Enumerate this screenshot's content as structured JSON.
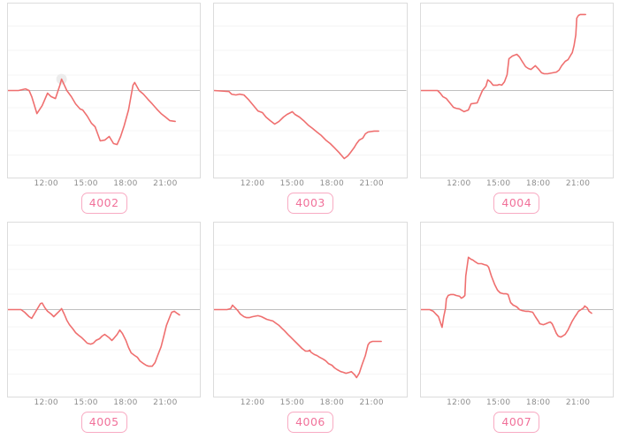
{
  "colors": {
    "line": "#ef6f6f",
    "zero_line": "#c0c0c0",
    "grid_line": "#f4f4f4",
    "plot_border": "#dcdcdc",
    "tick_text": "#8c8c8c",
    "badge_text": "#f1719a",
    "badge_border": "#f8abc3",
    "marker_halo": "#ececec"
  },
  "axis": {
    "xlim": [
      9.05,
      23.7
    ],
    "ylim": [
      -3.58,
      3.58
    ],
    "xticks": [
      {
        "hour": 12,
        "label": "12:00"
      },
      {
        "hour": 15,
        "label": "15:00"
      },
      {
        "hour": 18,
        "label": "18:00"
      },
      {
        "hour": 21,
        "label": "21:00"
      }
    ]
  },
  "chart_data": [
    {
      "type": "line",
      "code": "4002",
      "title": "",
      "xlabel": "",
      "ylabel": "",
      "x_unit": "time of day (hours)",
      "y_unit": "relative change (arbitrary units, no y-axis labels shown)",
      "baseline": 0,
      "grid": "horizontal-faint",
      "legend": "none",
      "marker": [
        13.14,
        0.47
      ],
      "points": [
        [
          9.05,
          0
        ],
        [
          9.85,
          0
        ],
        [
          10.39,
          0.07
        ],
        [
          10.66,
          0
        ],
        [
          10.86,
          -0.25
        ],
        [
          11.26,
          -0.95
        ],
        [
          11.66,
          -0.62
        ],
        [
          12.07,
          -0.11
        ],
        [
          12.34,
          -0.25
        ],
        [
          12.67,
          -0.33
        ],
        [
          13.01,
          0.22
        ],
        [
          13.14,
          0.47
        ],
        [
          13.54,
          0
        ],
        [
          13.88,
          -0.25
        ],
        [
          14.21,
          -0.55
        ],
        [
          14.55,
          -0.76
        ],
        [
          14.75,
          -0.8
        ],
        [
          15.09,
          -1.05
        ],
        [
          15.42,
          -1.35
        ],
        [
          15.69,
          -1.49
        ],
        [
          16.09,
          -2.07
        ],
        [
          16.43,
          -2.04
        ],
        [
          16.77,
          -1.89
        ],
        [
          17.1,
          -2.18
        ],
        [
          17.37,
          -2.22
        ],
        [
          17.64,
          -1.89
        ],
        [
          17.91,
          -1.45
        ],
        [
          18.24,
          -0.8
        ],
        [
          18.58,
          0.22
        ],
        [
          18.71,
          0.33
        ],
        [
          19.05,
          0
        ],
        [
          19.38,
          -0.15
        ],
        [
          19.72,
          -0.36
        ],
        [
          20.05,
          -0.55
        ],
        [
          20.39,
          -0.76
        ],
        [
          20.72,
          -0.95
        ],
        [
          21.06,
          -1.09
        ],
        [
          21.39,
          -1.24
        ],
        [
          21.8,
          -1.27
        ]
      ]
    },
    {
      "type": "line",
      "code": "4003",
      "title": "",
      "xlabel": "",
      "ylabel": "",
      "x_unit": "time of day (hours)",
      "y_unit": "relative change (arbitrary units, no y-axis labels shown)",
      "baseline": 0,
      "grid": "horizontal-faint",
      "legend": "none",
      "marker": null,
      "points": [
        [
          9.05,
          0
        ],
        [
          10.19,
          -0.04
        ],
        [
          10.39,
          -0.15
        ],
        [
          10.72,
          -0.18
        ],
        [
          10.99,
          -0.15
        ],
        [
          11.33,
          -0.18
        ],
        [
          11.66,
          -0.36
        ],
        [
          12.07,
          -0.62
        ],
        [
          12.4,
          -0.84
        ],
        [
          12.74,
          -0.91
        ],
        [
          13.01,
          -1.09
        ],
        [
          13.34,
          -1.24
        ],
        [
          13.68,
          -1.38
        ],
        [
          14.01,
          -1.27
        ],
        [
          14.35,
          -1.09
        ],
        [
          14.62,
          -0.98
        ],
        [
          14.89,
          -0.91
        ],
        [
          15.02,
          -0.87
        ],
        [
          15.22,
          -0.98
        ],
        [
          15.56,
          -1.09
        ],
        [
          15.89,
          -1.24
        ],
        [
          16.23,
          -1.42
        ],
        [
          16.56,
          -1.56
        ],
        [
          16.9,
          -1.71
        ],
        [
          17.23,
          -1.85
        ],
        [
          17.57,
          -2.04
        ],
        [
          17.91,
          -2.18
        ],
        [
          18.24,
          -2.36
        ],
        [
          18.58,
          -2.55
        ],
        [
          18.98,
          -2.8
        ],
        [
          19.25,
          -2.69
        ],
        [
          19.45,
          -2.55
        ],
        [
          19.72,
          -2.36
        ],
        [
          19.92,
          -2.18
        ],
        [
          20.12,
          -2.04
        ],
        [
          20.39,
          -1.96
        ],
        [
          20.59,
          -1.78
        ],
        [
          20.79,
          -1.71
        ],
        [
          20.99,
          -1.69
        ],
        [
          21.26,
          -1.67
        ],
        [
          21.6,
          -1.67
        ]
      ]
    },
    {
      "type": "line",
      "code": "4004",
      "title": "",
      "xlabel": "",
      "ylabel": "",
      "x_unit": "time of day (hours)",
      "y_unit": "relative change (arbitrary units, no y-axis labels shown)",
      "baseline": 0,
      "grid": "horizontal-faint",
      "legend": "none",
      "marker": null,
      "points": [
        [
          9.05,
          0
        ],
        [
          10.32,
          0
        ],
        [
          10.52,
          -0.11
        ],
        [
          10.72,
          -0.25
        ],
        [
          10.99,
          -0.33
        ],
        [
          11.26,
          -0.51
        ],
        [
          11.53,
          -0.69
        ],
        [
          11.73,
          -0.73
        ],
        [
          12.0,
          -0.76
        ],
        [
          12.34,
          -0.87
        ],
        [
          12.67,
          -0.8
        ],
        [
          12.87,
          -0.55
        ],
        [
          13.34,
          -0.51
        ],
        [
          13.54,
          -0.25
        ],
        [
          13.74,
          0
        ],
        [
          14.01,
          0.18
        ],
        [
          14.15,
          0.44
        ],
        [
          14.35,
          0.36
        ],
        [
          14.55,
          0.22
        ],
        [
          14.89,
          0.22
        ],
        [
          15.02,
          0.25
        ],
        [
          15.22,
          0.22
        ],
        [
          15.42,
          0.36
        ],
        [
          15.62,
          0.65
        ],
        [
          15.76,
          1.31
        ],
        [
          16.03,
          1.42
        ],
        [
          16.36,
          1.49
        ],
        [
          16.56,
          1.38
        ],
        [
          16.77,
          1.2
        ],
        [
          17.03,
          0.98
        ],
        [
          17.23,
          0.91
        ],
        [
          17.44,
          0.87
        ],
        [
          17.77,
          1.02
        ],
        [
          18.04,
          0.87
        ],
        [
          18.24,
          0.73
        ],
        [
          18.44,
          0.69
        ],
        [
          18.71,
          0.69
        ],
        [
          19.11,
          0.73
        ],
        [
          19.38,
          0.76
        ],
        [
          19.58,
          0.84
        ],
        [
          19.78,
          1.02
        ],
        [
          20.05,
          1.2
        ],
        [
          20.26,
          1.27
        ],
        [
          20.46,
          1.45
        ],
        [
          20.59,
          1.56
        ],
        [
          20.72,
          1.85
        ],
        [
          20.86,
          2.29
        ],
        [
          20.93,
          2.98
        ],
        [
          21.06,
          3.09
        ],
        [
          21.19,
          3.13
        ],
        [
          21.6,
          3.13
        ]
      ]
    },
    {
      "type": "line",
      "code": "4005",
      "title": "",
      "xlabel": "",
      "ylabel": "",
      "x_unit": "time of day (hours)",
      "y_unit": "relative change (arbitrary units, no y-axis labels shown)",
      "baseline": 0,
      "grid": "horizontal-faint",
      "legend": "none",
      "marker": null,
      "points": [
        [
          9.05,
          0
        ],
        [
          10.05,
          0
        ],
        [
          10.32,
          -0.11
        ],
        [
          10.66,
          -0.29
        ],
        [
          10.86,
          -0.36
        ],
        [
          11.06,
          -0.18
        ],
        [
          11.33,
          0.07
        ],
        [
          11.53,
          0.25
        ],
        [
          11.66,
          0.27
        ],
        [
          11.87,
          0.07
        ],
        [
          12.07,
          -0.07
        ],
        [
          12.34,
          -0.18
        ],
        [
          12.54,
          -0.29
        ],
        [
          12.74,
          -0.18
        ],
        [
          13.01,
          -0.04
        ],
        [
          13.14,
          0.04
        ],
        [
          13.34,
          -0.18
        ],
        [
          13.54,
          -0.44
        ],
        [
          13.74,
          -0.62
        ],
        [
          14.01,
          -0.8
        ],
        [
          14.21,
          -0.95
        ],
        [
          14.42,
          -1.05
        ],
        [
          14.68,
          -1.16
        ],
        [
          14.89,
          -1.27
        ],
        [
          15.09,
          -1.38
        ],
        [
          15.36,
          -1.42
        ],
        [
          15.56,
          -1.38
        ],
        [
          15.76,
          -1.27
        ],
        [
          16.03,
          -1.2
        ],
        [
          16.23,
          -1.09
        ],
        [
          16.43,
          -1.02
        ],
        [
          16.77,
          -1.16
        ],
        [
          16.97,
          -1.27
        ],
        [
          17.1,
          -1.2
        ],
        [
          17.37,
          -1.02
        ],
        [
          17.57,
          -0.84
        ],
        [
          17.77,
          -0.98
        ],
        [
          18.04,
          -1.27
        ],
        [
          18.24,
          -1.56
        ],
        [
          18.44,
          -1.78
        ],
        [
          18.71,
          -1.89
        ],
        [
          18.91,
          -1.96
        ],
        [
          19.11,
          -2.11
        ],
        [
          19.38,
          -2.22
        ],
        [
          19.58,
          -2.29
        ],
        [
          19.78,
          -2.33
        ],
        [
          20.05,
          -2.33
        ],
        [
          20.26,
          -2.18
        ],
        [
          20.46,
          -1.89
        ],
        [
          20.72,
          -1.53
        ],
        [
          20.93,
          -1.09
        ],
        [
          21.13,
          -0.65
        ],
        [
          21.39,
          -0.29
        ],
        [
          21.53,
          -0.11
        ],
        [
          21.73,
          -0.07
        ],
        [
          21.93,
          -0.15
        ],
        [
          22.13,
          -0.22
        ]
      ]
    },
    {
      "type": "line",
      "code": "4006",
      "title": "",
      "xlabel": "",
      "ylabel": "",
      "x_unit": "time of day (hours)",
      "y_unit": "relative change (arbitrary units, no y-axis labels shown)",
      "baseline": 0,
      "grid": "horizontal-faint",
      "legend": "none",
      "marker": null,
      "points": [
        [
          9.05,
          0
        ],
        [
          10.05,
          0
        ],
        [
          10.32,
          0.04
        ],
        [
          10.46,
          0.18
        ],
        [
          10.66,
          0.07
        ],
        [
          10.86,
          -0.04
        ],
        [
          11.06,
          -0.18
        ],
        [
          11.33,
          -0.29
        ],
        [
          11.53,
          -0.33
        ],
        [
          11.73,
          -0.33
        ],
        [
          12.0,
          -0.29
        ],
        [
          12.4,
          -0.25
        ],
        [
          12.67,
          -0.29
        ],
        [
          13.07,
          -0.4
        ],
        [
          13.34,
          -0.44
        ],
        [
          13.54,
          -0.47
        ],
        [
          13.74,
          -0.55
        ],
        [
          14.01,
          -0.65
        ],
        [
          14.21,
          -0.76
        ],
        [
          14.42,
          -0.87
        ],
        [
          14.68,
          -1.02
        ],
        [
          14.89,
          -1.13
        ],
        [
          15.09,
          -1.24
        ],
        [
          15.36,
          -1.38
        ],
        [
          15.56,
          -1.49
        ],
        [
          15.76,
          -1.6
        ],
        [
          16.03,
          -1.71
        ],
        [
          16.23,
          -1.71
        ],
        [
          16.36,
          -1.67
        ],
        [
          16.43,
          -1.75
        ],
        [
          16.7,
          -1.85
        ],
        [
          16.9,
          -1.89
        ],
        [
          17.1,
          -1.96
        ],
        [
          17.37,
          -2.04
        ],
        [
          17.57,
          -2.11
        ],
        [
          17.77,
          -2.22
        ],
        [
          18.04,
          -2.29
        ],
        [
          18.24,
          -2.4
        ],
        [
          18.44,
          -2.47
        ],
        [
          18.71,
          -2.55
        ],
        [
          18.91,
          -2.58
        ],
        [
          19.11,
          -2.62
        ],
        [
          19.38,
          -2.58
        ],
        [
          19.52,
          -2.55
        ],
        [
          19.65,
          -2.62
        ],
        [
          19.78,
          -2.69
        ],
        [
          19.92,
          -2.8
        ],
        [
          20.12,
          -2.62
        ],
        [
          20.32,
          -2.29
        ],
        [
          20.59,
          -1.89
        ],
        [
          20.79,
          -1.45
        ],
        [
          20.93,
          -1.35
        ],
        [
          21.13,
          -1.31
        ],
        [
          21.39,
          -1.31
        ],
        [
          21.8,
          -1.31
        ]
      ]
    },
    {
      "type": "line",
      "code": "4007",
      "title": "",
      "xlabel": "",
      "ylabel": "",
      "x_unit": "time of day (hours)",
      "y_unit": "relative change (arbitrary units, no y-axis labels shown)",
      "baseline": 0,
      "grid": "horizontal-faint",
      "legend": "none",
      "marker": null,
      "points": [
        [
          9.05,
          0
        ],
        [
          9.72,
          0
        ],
        [
          9.99,
          -0.07
        ],
        [
          10.19,
          -0.18
        ],
        [
          10.39,
          -0.29
        ],
        [
          10.66,
          -0.73
        ],
        [
          10.79,
          -0.29
        ],
        [
          10.93,
          0.07
        ],
        [
          10.99,
          0.44
        ],
        [
          11.13,
          0.58
        ],
        [
          11.33,
          0.62
        ],
        [
          11.53,
          0.62
        ],
        [
          11.73,
          0.58
        ],
        [
          12.0,
          0.55
        ],
        [
          12.13,
          0.47
        ],
        [
          12.27,
          0.51
        ],
        [
          12.4,
          0.58
        ],
        [
          12.47,
          1.38
        ],
        [
          12.67,
          2.15
        ],
        [
          12.87,
          2.07
        ],
        [
          13.01,
          2.04
        ],
        [
          13.21,
          1.96
        ],
        [
          13.41,
          1.89
        ],
        [
          13.68,
          1.89
        ],
        [
          13.88,
          1.85
        ],
        [
          14.08,
          1.82
        ],
        [
          14.21,
          1.75
        ],
        [
          14.42,
          1.38
        ],
        [
          14.68,
          1.02
        ],
        [
          14.89,
          0.8
        ],
        [
          15.09,
          0.69
        ],
        [
          15.36,
          0.65
        ],
        [
          15.56,
          0.65
        ],
        [
          15.69,
          0.62
        ],
        [
          15.89,
          0.29
        ],
        [
          16.09,
          0.18
        ],
        [
          16.23,
          0.15
        ],
        [
          16.36,
          0.11
        ],
        [
          16.56,
          0
        ],
        [
          16.77,
          -0.04
        ],
        [
          17.03,
          -0.07
        ],
        [
          17.23,
          -0.07
        ],
        [
          17.57,
          -0.11
        ],
        [
          17.77,
          -0.29
        ],
        [
          18.04,
          -0.51
        ],
        [
          18.11,
          -0.58
        ],
        [
          18.38,
          -0.62
        ],
        [
          18.58,
          -0.58
        ],
        [
          18.71,
          -0.55
        ],
        [
          18.91,
          -0.51
        ],
        [
          19.05,
          -0.58
        ],
        [
          19.18,
          -0.73
        ],
        [
          19.38,
          -0.98
        ],
        [
          19.52,
          -1.09
        ],
        [
          19.72,
          -1.13
        ],
        [
          19.85,
          -1.09
        ],
        [
          20.05,
          -1.02
        ],
        [
          20.26,
          -0.84
        ],
        [
          20.39,
          -0.69
        ],
        [
          20.59,
          -0.47
        ],
        [
          20.79,
          -0.29
        ],
        [
          20.93,
          -0.18
        ],
        [
          21.06,
          -0.07
        ],
        [
          21.26,
          0
        ],
        [
          21.46,
          0.07
        ],
        [
          21.53,
          0.15
        ],
        [
          21.73,
          0.07
        ],
        [
          21.86,
          -0.07
        ],
        [
          22.06,
          -0.15
        ]
      ]
    }
  ]
}
